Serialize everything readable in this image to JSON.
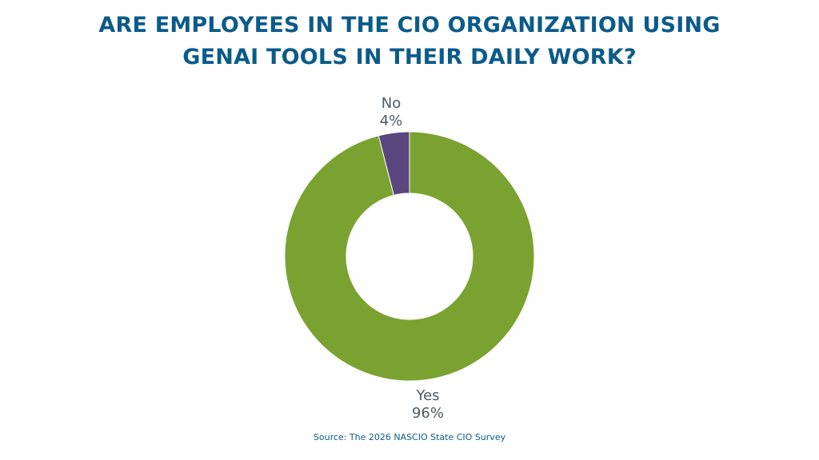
{
  "chart_data": {
    "type": "pie",
    "donut": true,
    "title_lines": [
      "ARE EMPLOYEES IN THE CIO ORGANIZATION USING",
      "GENAI TOOLS IN THEIR DAILY WORK?"
    ],
    "slices": [
      {
        "label": "No",
        "value": 4,
        "value_label": "4%",
        "color": "#5b4680"
      },
      {
        "label": "Yes",
        "value": 96,
        "value_label": "96%",
        "color": "#7aa231"
      }
    ],
    "legend": "none"
  },
  "source": "Source: The 2026 NASCIO State CIO Survey"
}
